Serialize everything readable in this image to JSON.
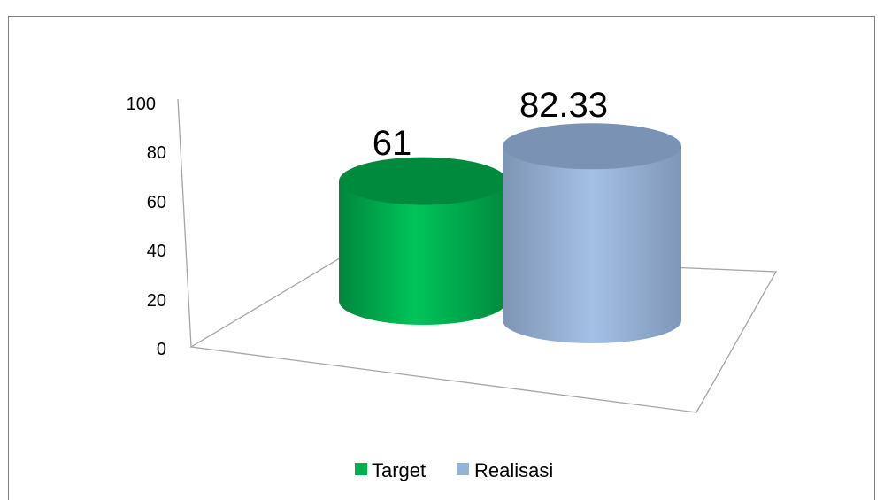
{
  "chart_data": {
    "type": "bar",
    "style": "3d-cylinder",
    "categories": [
      ""
    ],
    "series": [
      {
        "name": "Target",
        "values": [
          61
        ],
        "color": "#00b050"
      },
      {
        "name": "Realisasi",
        "values": [
          82.33
        ],
        "color": "#95b3d7"
      }
    ],
    "data_labels": [
      "61",
      "82.33"
    ],
    "y_ticks": [
      "0",
      "20",
      "40",
      "60",
      "80",
      "100"
    ],
    "ylim": [
      0,
      100
    ],
    "grid": false,
    "legend_position": "bottom",
    "title": "",
    "xlabel": "",
    "ylabel": ""
  }
}
